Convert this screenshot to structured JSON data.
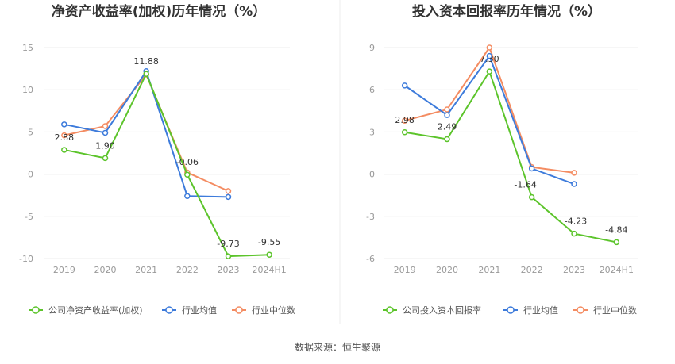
{
  "source_label": "数据来源：恒生聚源",
  "colors": {
    "company": "#5cc42b",
    "industry_avg": "#3d7bdb",
    "industry_median": "#f48c62"
  },
  "chart_data": [
    {
      "type": "line",
      "title": "净资产收益率(加权)历年情况（%）",
      "categories": [
        "2019",
        "2020",
        "2021",
        "2022",
        "2023",
        "2024H1"
      ],
      "ylim": [
        -10,
        15
      ],
      "yticks": [
        -10,
        -5,
        0,
        5,
        10,
        15
      ],
      "grid": true,
      "legend_position": "bottom",
      "series": [
        {
          "key": "company",
          "name": "公司净资产收益率(加权)",
          "values": [
            2.88,
            1.9,
            11.88,
            -0.06,
            -9.73,
            -9.55
          ],
          "labels": [
            "2.88",
            "1.90",
            "11.88",
            "-0.06",
            "-9.73",
            "-9.55"
          ]
        },
        {
          "key": "industry_avg",
          "name": "行业均值",
          "values": [
            5.9,
            4.9,
            12.2,
            -2.6,
            -2.7,
            null
          ]
        },
        {
          "key": "industry_median",
          "name": "行业中位数",
          "values": [
            4.6,
            5.7,
            11.8,
            0.2,
            -2.0,
            null
          ]
        }
      ]
    },
    {
      "type": "line",
      "title": "投入资本回报率历年情况（%）",
      "categories": [
        "2019",
        "2020",
        "2021",
        "2022",
        "2023",
        "2024H1"
      ],
      "ylim": [
        -6,
        9
      ],
      "yticks": [
        -6,
        -3,
        0,
        3,
        6,
        9
      ],
      "grid": true,
      "legend_position": "bottom",
      "series": [
        {
          "key": "company",
          "name": "公司投入资本回报率",
          "values": [
            2.98,
            2.49,
            7.3,
            -1.64,
            -4.23,
            -4.84
          ],
          "labels": [
            "2.98",
            "2.49",
            "7.30",
            "-1.64",
            "-4.23",
            "-4.84"
          ]
        },
        {
          "key": "industry_avg",
          "name": "行业均值",
          "values": [
            6.3,
            4.2,
            8.4,
            0.4,
            -0.7,
            null
          ]
        },
        {
          "key": "industry_median",
          "name": "行业中位数",
          "values": [
            3.8,
            4.6,
            9.0,
            0.5,
            0.1,
            null
          ]
        }
      ]
    }
  ]
}
